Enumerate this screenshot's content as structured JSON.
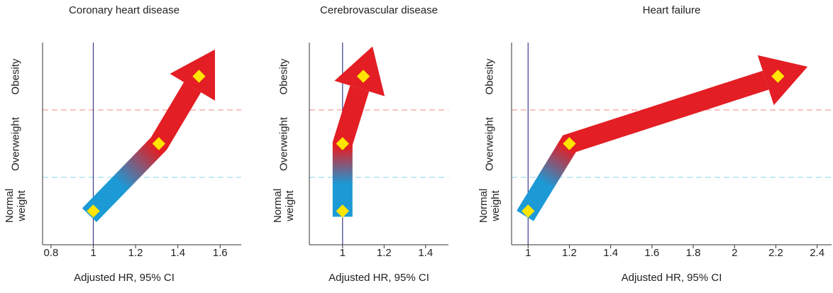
{
  "chart_data": [
    {
      "type": "line",
      "title": "Coronary heart disease",
      "xlabel": "Adjusted HR, 95% CI",
      "categories": [
        "Normal weight",
        "Overweight",
        "Obesity"
      ],
      "values": [
        1,
        1.31,
        1.5
      ],
      "xlim": [
        0.76,
        1.7
      ],
      "xticks": [
        0.8,
        1,
        1.2,
        1.4,
        1.6
      ],
      "reference_line": 1,
      "gradient": [
        "#1b9ad6",
        "#e31e24"
      ],
      "marker_color": "#ffe500"
    },
    {
      "type": "line",
      "title": "Cerebrovascular disease",
      "xlabel": "Adjusted HR, 95% CI",
      "categories": [
        "Normal weight",
        "Overweight",
        "Obesity"
      ],
      "values": [
        1,
        1,
        1.1
      ],
      "xlim": [
        0.84,
        1.51
      ],
      "xticks": [
        1,
        1.2,
        1.4
      ],
      "reference_line": 1,
      "gradient": [
        "#1b9ad6",
        "#e31e24"
      ],
      "marker_color": "#ffe500"
    },
    {
      "type": "line",
      "title": "Heart failure",
      "xlabel": "Adjusted HR, 95% CI",
      "categories": [
        "Normal weight",
        "Overweight",
        "Obesity"
      ],
      "values": [
        1,
        1.2,
        2.21
      ],
      "xlim": [
        0.92,
        2.47
      ],
      "xticks": [
        1,
        1.2,
        1.4,
        1.6,
        1.8,
        2,
        2.2,
        2.4
      ],
      "reference_line": 1,
      "gradient": [
        "#1b9ad6",
        "#e31e24"
      ],
      "marker_color": "#ffe500"
    }
  ]
}
